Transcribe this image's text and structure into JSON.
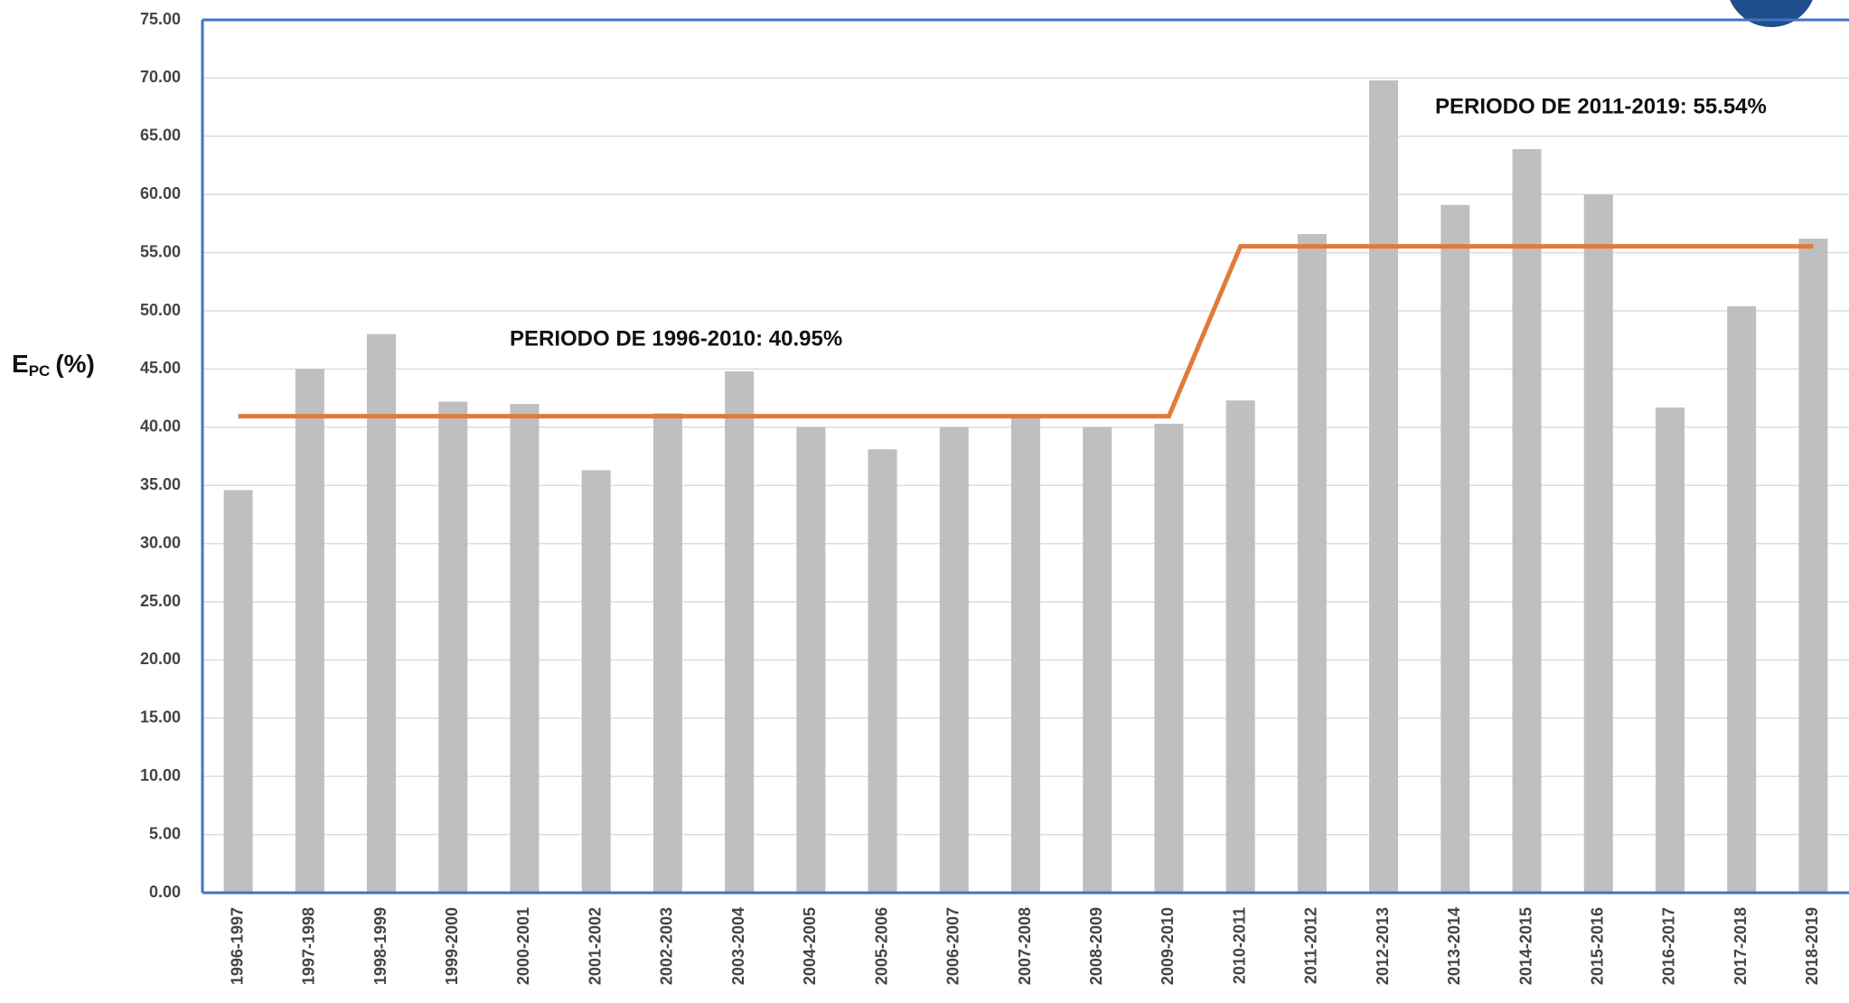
{
  "chart_data": {
    "type": "bar",
    "ylabel_parts": [
      "E",
      "PC",
      "(%)"
    ],
    "categories": [
      "1996-1997",
      "1997-1998",
      "1998-1999",
      "1999-2000",
      "2000-2001",
      "2001-2002",
      "2002-2003",
      "2003-2004",
      "2004-2005",
      "2005-2006",
      "2006-2007",
      "2007-2008",
      "2008-2009",
      "2009-2010",
      "2010-2011",
      "2011-2012",
      "2012-2013",
      "2013-2014",
      "2014-2015",
      "2015-2016",
      "2016-2017",
      "2017-2018",
      "2018-2019"
    ],
    "values": [
      34.6,
      45.0,
      48.0,
      42.2,
      42.0,
      36.3,
      41.2,
      44.8,
      40.0,
      38.1,
      40.0,
      41.0,
      40.0,
      40.3,
      42.3,
      56.6,
      69.8,
      59.1,
      63.9,
      60.0,
      41.7,
      50.4,
      56.2
    ],
    "color": "#bfbfbf",
    "line": {
      "color": "#e07b39",
      "values": [
        40.95,
        40.95,
        40.95,
        40.95,
        40.95,
        40.95,
        40.95,
        40.95,
        40.95,
        40.95,
        40.95,
        40.95,
        40.95,
        40.95,
        55.54,
        55.54,
        55.54,
        55.54,
        55.54,
        55.54,
        55.54,
        55.54,
        55.54
      ]
    },
    "annotations": [
      "PERIODO DE 1996-2010:  40.95%",
      "PERIODO DE 2011-2019:  55.54%"
    ],
    "ylim": [
      0,
      75
    ],
    "yticks": [
      {
        "value": 0,
        "label": "0.00"
      },
      {
        "value": 5,
        "label": "5.00"
      },
      {
        "value": 10,
        "label": "10.00"
      },
      {
        "value": 15,
        "label": "15.00"
      },
      {
        "value": 20,
        "label": "20.00"
      },
      {
        "value": 25,
        "label": "25.00"
      },
      {
        "value": 30,
        "label": "30.00"
      },
      {
        "value": 35,
        "label": "35.00"
      },
      {
        "value": 40,
        "label": "40.00"
      },
      {
        "value": 45,
        "label": "45.00"
      },
      {
        "value": 50,
        "label": "50.00"
      },
      {
        "value": 55,
        "label": "55.00"
      },
      {
        "value": 60,
        "label": "60.00"
      },
      {
        "value": 65,
        "label": "65.00"
      },
      {
        "value": 70,
        "label": "70.00"
      },
      {
        "value": 75,
        "label": "75.00"
      }
    ],
    "grid": true
  }
}
